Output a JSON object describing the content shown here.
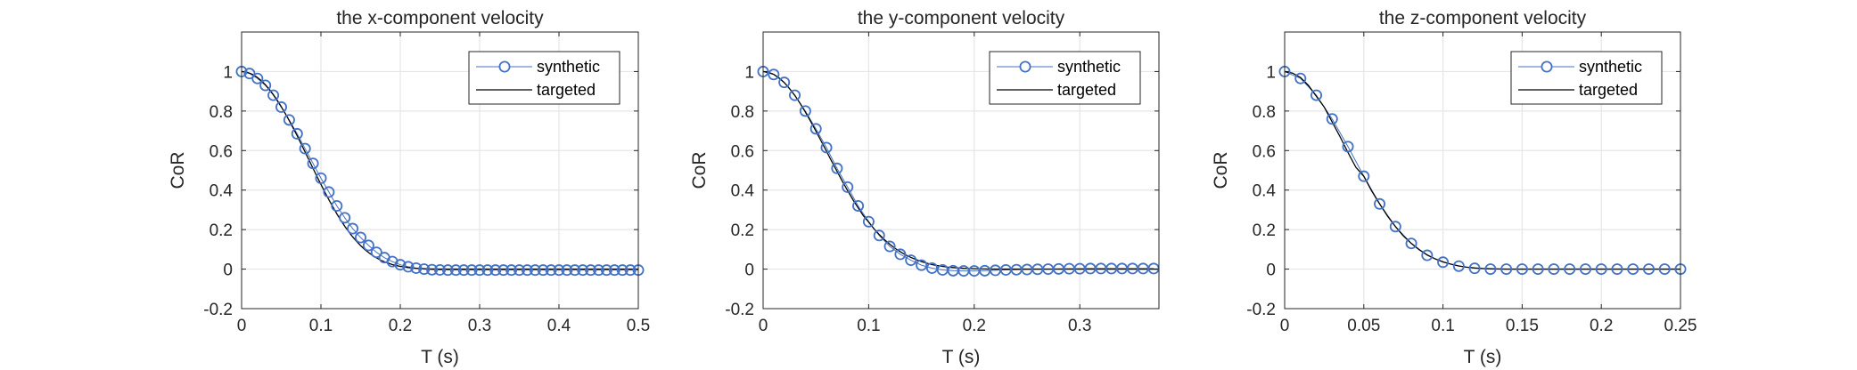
{
  "chart_data": [
    {
      "type": "line",
      "title": "the x-component velocity",
      "xlabel": "T (s)",
      "ylabel": "CoR",
      "xlim": [
        0,
        0.5
      ],
      "ylim": [
        -0.2,
        1.2
      ],
      "xticks": [
        0,
        0.1,
        0.2,
        0.3,
        0.4,
        0.5
      ],
      "xtick_labels": [
        "0",
        "0.1",
        "0.2",
        "0.3",
        "0.4",
        "0.5"
      ],
      "yticks": [
        -0.2,
        0,
        0.2,
        0.4,
        0.6,
        0.8,
        1
      ],
      "ytick_labels": [
        "-0.2",
        "0",
        "0.2",
        "0.4",
        "0.6",
        "0.8",
        "1"
      ],
      "grid": true,
      "legend": {
        "placement": "top-right",
        "entries": [
          "synthetic",
          "targeted"
        ]
      },
      "series": [
        {
          "name": "synthetic",
          "style": "line-with-circle-markers",
          "color": "#4472C4",
          "x_start": 0,
          "x_step": 0.01,
          "values": [
            1,
            0.99,
            0.965,
            0.93,
            0.88,
            0.82,
            0.755,
            0.685,
            0.61,
            0.535,
            0.46,
            0.39,
            0.32,
            0.26,
            0.205,
            0.16,
            0.12,
            0.085,
            0.058,
            0.038,
            0.022,
            0.012,
            0.005,
            0.0,
            -0.003,
            -0.004,
            -0.005,
            -0.005,
            -0.005,
            -0.005,
            -0.005,
            -0.005,
            -0.005,
            -0.005,
            -0.005,
            -0.005,
            -0.005,
            -0.005,
            -0.005,
            -0.005,
            -0.005,
            -0.005,
            -0.005,
            -0.005,
            -0.005,
            -0.005,
            -0.005,
            -0.005,
            -0.005,
            -0.005,
            -0.005
          ]
        },
        {
          "name": "targeted",
          "style": "line",
          "color": "#000000",
          "x_start": 0,
          "x_step": 0.005,
          "values": [
            1,
            0.998,
            0.992,
            0.983,
            0.97,
            0.953,
            0.933,
            0.91,
            0.883,
            0.854,
            0.822,
            0.788,
            0.752,
            0.714,
            0.675,
            0.634,
            0.593,
            0.552,
            0.51,
            0.469,
            0.429,
            0.389,
            0.351,
            0.315,
            0.28,
            0.248,
            0.217,
            0.189,
            0.163,
            0.14,
            0.119,
            0.1,
            0.084,
            0.069,
            0.057,
            0.046,
            0.037,
            0.03,
            0.023,
            0.018,
            0.014,
            0.011,
            0.008,
            0.006,
            0.004,
            0.003,
            0.002,
            0.001,
            0.001,
            0.0,
            0.0,
            0,
            0,
            0,
            0,
            0,
            0,
            0,
            0,
            0,
            0,
            0,
            0,
            0,
            0,
            0,
            0,
            0,
            0,
            0,
            0,
            0,
            0,
            0,
            0,
            0,
            0,
            0,
            0,
            0,
            0,
            0,
            0,
            0,
            0,
            0,
            0,
            0,
            0,
            0,
            0,
            0,
            0,
            0,
            0,
            0,
            0,
            0,
            0,
            0,
            0
          ]
        }
      ]
    },
    {
      "type": "line",
      "title": "the y-component velocity",
      "xlabel": "T (s)",
      "ylabel": "CoR",
      "xlim": [
        0,
        0.375
      ],
      "ylim": [
        -0.2,
        1.2
      ],
      "xticks": [
        0,
        0.1,
        0.2,
        0.3
      ],
      "xtick_labels": [
        "0",
        "0.1",
        "0.2",
        "0.3"
      ],
      "yticks": [
        -0.2,
        0,
        0.2,
        0.4,
        0.6,
        0.8,
        1
      ],
      "ytick_labels": [
        "-0.2",
        "0",
        "0.2",
        "0.4",
        "0.6",
        "0.8",
        "1"
      ],
      "grid": true,
      "legend": {
        "placement": "top-right",
        "entries": [
          "synthetic",
          "targeted"
        ]
      },
      "series": [
        {
          "name": "synthetic",
          "style": "line-with-circle-markers",
          "color": "#4472C4",
          "x_start": 0,
          "x_step": 0.01,
          "values": [
            1,
            0.985,
            0.945,
            0.88,
            0.8,
            0.71,
            0.615,
            0.51,
            0.415,
            0.32,
            0.24,
            0.17,
            0.115,
            0.075,
            0.045,
            0.02,
            0.005,
            -0.004,
            -0.008,
            -0.009,
            -0.009,
            -0.008,
            -0.006,
            -0.004,
            -0.003,
            -0.002,
            -0.001,
            0.0,
            0.001,
            0.002,
            0.002,
            0.003,
            0.003,
            0.003,
            0.003,
            0.003,
            0.003,
            0.003
          ]
        },
        {
          "name": "targeted",
          "style": "line",
          "color": "#000000",
          "x_start": 0,
          "x_step": 0.005,
          "values": [
            1,
            0.996,
            0.986,
            0.968,
            0.944,
            0.914,
            0.879,
            0.839,
            0.795,
            0.748,
            0.699,
            0.648,
            0.597,
            0.545,
            0.495,
            0.445,
            0.398,
            0.352,
            0.31,
            0.27,
            0.238,
            0.204,
            0.175,
            0.149,
            0.126,
            0.105,
            0.088,
            0.072,
            0.059,
            0.048,
            0.038,
            0.03,
            0.023,
            0.018,
            0.014,
            0.01,
            0.008,
            0.006,
            0.004,
            0.003,
            0.002,
            0.001,
            0.001,
            0,
            0,
            0,
            0,
            0,
            0,
            0,
            0,
            0,
            0,
            0,
            0,
            0,
            0,
            0,
            0,
            0,
            0,
            0,
            0,
            0,
            0,
            0,
            0,
            0,
            0,
            0,
            0,
            0,
            0,
            0,
            0,
            0
          ]
        }
      ]
    },
    {
      "type": "line",
      "title": "the z-component velocity",
      "xlabel": "T (s)",
      "ylabel": "CoR",
      "xlim": [
        0,
        0.25
      ],
      "ylim": [
        -0.2,
        1.2
      ],
      "xticks": [
        0,
        0.05,
        0.1,
        0.15,
        0.2,
        0.25
      ],
      "xtick_labels": [
        "0",
        "0.05",
        "0.1",
        "0.15",
        "0.2",
        "0.25"
      ],
      "yticks": [
        -0.2,
        0,
        0.2,
        0.4,
        0.6,
        0.8,
        1
      ],
      "ytick_labels": [
        "-0.2",
        "0",
        "0.2",
        "0.4",
        "0.6",
        "0.8",
        "1"
      ],
      "grid": true,
      "legend": {
        "placement": "top-right",
        "entries": [
          "synthetic",
          "targeted"
        ]
      },
      "series": [
        {
          "name": "synthetic",
          "style": "line-with-circle-markers",
          "color": "#4472C4",
          "x_start": 0,
          "x_step": 0.01,
          "values": [
            1,
            0.965,
            0.88,
            0.76,
            0.62,
            0.47,
            0.33,
            0.215,
            0.13,
            0.07,
            0.035,
            0.015,
            0.004,
            0.0,
            0.0,
            0.0,
            0.0,
            0.0,
            0.0,
            0.0,
            0.0,
            0.0,
            0.0,
            0.0,
            0.0,
            0.0
          ]
        },
        {
          "name": "targeted",
          "style": "line",
          "color": "#000000",
          "x_start": 0,
          "x_step": 0.005,
          "values": [
            1,
            0.992,
            0.97,
            0.93,
            0.875,
            0.82,
            0.745,
            0.67,
            0.59,
            0.515,
            0.47,
            0.395,
            0.33,
            0.268,
            0.215,
            0.168,
            0.13,
            0.098,
            0.072,
            0.052,
            0.037,
            0.025,
            0.016,
            0.01,
            0.006,
            0.003,
            0.002,
            0.001,
            0,
            0,
            0,
            0,
            0,
            0,
            0,
            0,
            0,
            0,
            0,
            0,
            0,
            0,
            0,
            0,
            0,
            0,
            0,
            0,
            0,
            0,
            0
          ]
        }
      ]
    }
  ]
}
